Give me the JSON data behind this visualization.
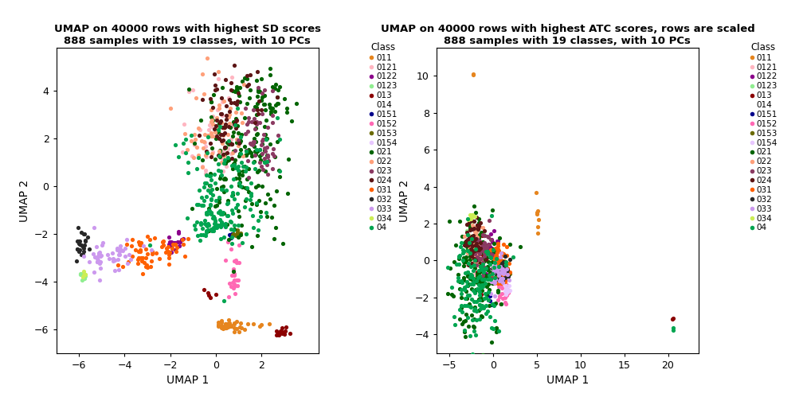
{
  "title1": "UMAP on 40000 rows with highest SD scores\n888 samples with 19 classes, with 10 PCs",
  "title2": "UMAP on 40000 rows with highest ATC scores, rows are scaled\n888 samples with 19 classes, with 10 PCs",
  "xlabel": "UMAP 1",
  "ylabel": "UMAP 2",
  "classes": [
    "011",
    "0121",
    "0122",
    "0123",
    "013",
    "014",
    "0151",
    "0152",
    "0153",
    "0154",
    "021",
    "022",
    "023",
    "024",
    "031",
    "032",
    "033",
    "034",
    "04"
  ],
  "colors": {
    "011": "#E6851E",
    "0121": "#FFB6C1",
    "0122": "#8B008B",
    "0123": "#90EE90",
    "013": "#8B0000",
    "014": "#FFFFFF",
    "0151": "#00008B",
    "0152": "#FF69B4",
    "0153": "#6B6B00",
    "0154": "#E8C8FF",
    "021": "#006400",
    "022": "#FFA07A",
    "023": "#8B3A62",
    "024": "#5C1515",
    "031": "#FF6000",
    "032": "#282828",
    "033": "#CC99EE",
    "034": "#CCEE55",
    "04": "#00A550"
  },
  "plot1_xlim": [
    -7.0,
    4.5
  ],
  "plot1_ylim": [
    -7.0,
    5.8
  ],
  "plot1_xticks": [
    -6,
    -4,
    -2,
    0,
    2
  ],
  "plot1_yticks": [
    -6,
    -4,
    -2,
    0,
    2,
    4
  ],
  "plot2_xlim": [
    -6.5,
    23.5
  ],
  "plot2_ylim": [
    -5.0,
    11.5
  ],
  "plot2_xticks": [
    -5,
    0,
    5,
    10,
    15,
    20
  ],
  "plot2_yticks": [
    -4,
    -2,
    0,
    2,
    4,
    6,
    8,
    10
  ],
  "point_size": 14,
  "background_color": "#FFFFFF",
  "panel_bg": "#FFFFFF"
}
